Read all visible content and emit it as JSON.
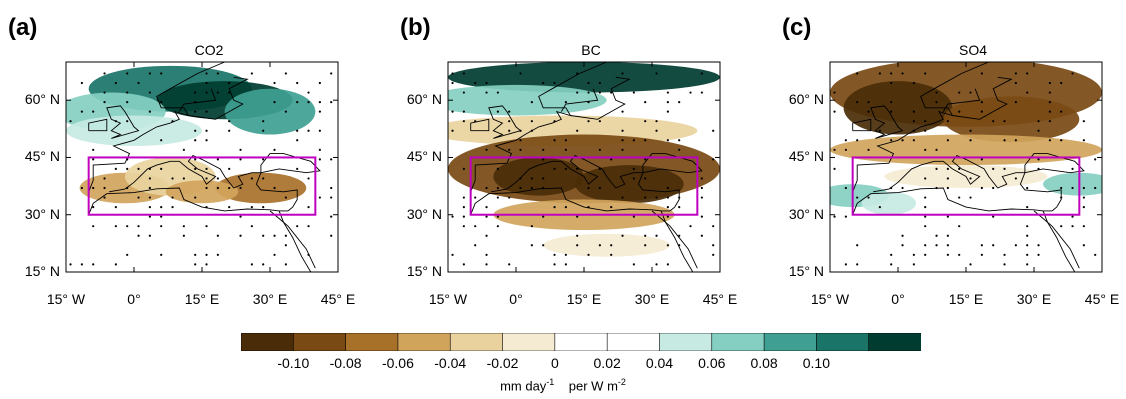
{
  "panels": [
    {
      "letter": "(a)",
      "title": "CO2"
    },
    {
      "letter": "(b)",
      "title": "BC"
    },
    {
      "letter": "(c)",
      "title": "SO4"
    }
  ],
  "axes": {
    "y_ticks": [
      "60° N",
      "45° N",
      "30° N",
      "15° N"
    ],
    "x_ticks": [
      "15° W",
      "0°",
      "15° E",
      "30° E",
      "45° E"
    ]
  },
  "colorbar": {
    "labels": [
      "-0.10",
      "-0.08",
      "-0.06",
      "-0.04",
      "-0.02",
      "0",
      "0.02",
      "0.04",
      "0.06",
      "0.08",
      "0.10"
    ],
    "colors": [
      "#4a2c08",
      "#7a4a14",
      "#a8712a",
      "#d1a45c",
      "#e9d29e",
      "#f5ebd3",
      "#ffffff",
      "#ffffff",
      "#c7eae3",
      "#84cfc1",
      "#3f9f92",
      "#1a7468",
      "#003c30"
    ],
    "units_main": "mm day",
    "units_main_sup": "-1",
    "units_per": "per W m",
    "units_per_sup": "-2"
  },
  "chart_data": {
    "type": "heatmap",
    "box_color": "#c000c0",
    "lon_range": [
      -15,
      45
    ],
    "lat_range": [
      15,
      70
    ],
    "box": {
      "lon": [
        -10,
        40
      ],
      "lat": [
        30,
        45
      ]
    }
  }
}
